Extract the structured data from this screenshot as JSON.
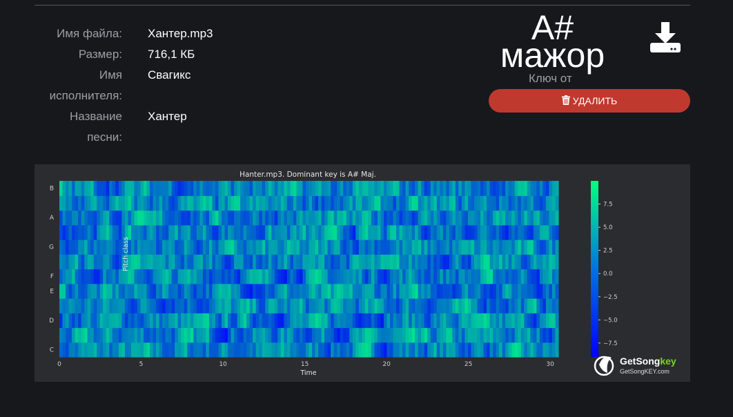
{
  "file_info": {
    "rows": [
      {
        "label": "Имя файла:",
        "value": "Хантер.mp3"
      },
      {
        "label": "Размер:",
        "value": "716,1 КБ"
      },
      {
        "label": "Имя исполнителя:",
        "value": "Свагикс"
      },
      {
        "label": "Название песни:",
        "value": "Хантер"
      }
    ]
  },
  "key": {
    "name_line1": "A#",
    "name_line2": "мажор",
    "subtitle": "Ключ от"
  },
  "actions": {
    "delete_label": "УДАЛИТЬ",
    "download_icon": "download-icon",
    "delete_icon": "trash-icon"
  },
  "logo": {
    "brand_main": "GetSong",
    "brand_accent": "key",
    "url": "GetSongKEY.com",
    "accent_color": "#7ed321"
  },
  "chart_data": {
    "type": "heatmap",
    "title": "Hanter.mp3. Dominant key is A# Maj.",
    "xlabel": "Time",
    "ylabel": "Pitch class",
    "xlim": [
      0,
      30.5
    ],
    "x_ticks": [
      0,
      5,
      10,
      15,
      20,
      25,
      30
    ],
    "y_labels": [
      "C",
      "D",
      "E",
      "F",
      "G",
      "A",
      "B"
    ],
    "rows": 12,
    "colorbar": {
      "range": [
        -9,
        10
      ],
      "ticks": [
        7.5,
        5.0,
        2.5,
        0.0,
        -2.5,
        -5.0,
        -7.5
      ],
      "tick_labels": [
        "7.5",
        "5.0",
        "2.5",
        "0.0",
        "−2.5",
        "−5.0",
        "−7.5"
      ],
      "colors": [
        "#0000ff",
        "#00ff80"
      ]
    }
  }
}
